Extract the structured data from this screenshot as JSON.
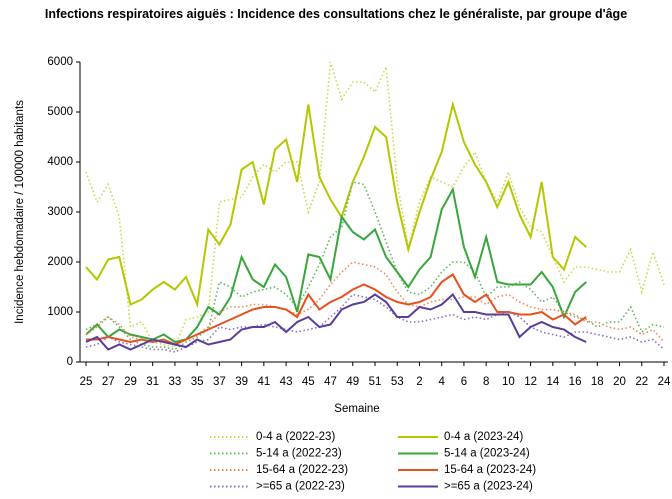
{
  "chart_data": {
    "type": "line",
    "title": "Infections respiratoires aiguës : Incidence des consultations chez le généraliste, par groupe d'âge",
    "x_label": "Semaine",
    "y_label": "Incidence hebdomadaire / 100000 habitants",
    "categories": [
      "25",
      null,
      "27",
      null,
      "29",
      null,
      "31",
      null,
      "33",
      null,
      "35",
      null,
      "37",
      null,
      "39",
      null,
      "41",
      null,
      "43",
      null,
      "45",
      null,
      "47",
      null,
      "49",
      null,
      "51",
      null,
      "53",
      null,
      "2",
      null,
      "4",
      null,
      "6",
      null,
      "8",
      null,
      "10",
      null,
      "12",
      null,
      "14",
      null,
      "16",
      null,
      "18",
      null,
      "20",
      null,
      "22",
      null,
      "24"
    ],
    "ylim": [
      0,
      6000
    ],
    "yticks": [
      0,
      1000,
      2000,
      3000,
      4000,
      5000,
      6000
    ],
    "series": [
      {
        "name": "0-4 a (2022-23)",
        "color": "#c9d84c",
        "style": "dotted",
        "values": [
          3800,
          3200,
          3550,
          2900,
          700,
          800,
          400,
          350,
          300,
          850,
          900,
          1000,
          3200,
          3250,
          3300,
          3700,
          3950,
          3800,
          4000,
          4000,
          3000,
          3600,
          6000,
          5250,
          5600,
          5600,
          5400,
          5900,
          3600,
          2300,
          3200,
          3700,
          3600,
          3500,
          3900,
          4200,
          3600,
          3200,
          3800,
          3100,
          2700,
          2600,
          2100,
          1600,
          1900,
          1900,
          1850,
          1800,
          1800,
          2250,
          1400,
          2200,
          1550
        ]
      },
      {
        "name": "0-4 a (2023-24)",
        "color": "#b4c700",
        "style": "solid",
        "values": [
          1900,
          1650,
          2050,
          2100,
          1150,
          1250,
          1450,
          1600,
          1450,
          1700,
          1150,
          2650,
          2350,
          2750,
          3850,
          4000,
          3150,
          4250,
          4450,
          3600,
          5150,
          3700,
          3250,
          2900,
          3600,
          4100,
          4700,
          4500,
          3200,
          2250,
          3000,
          3650,
          4200,
          5150,
          4400,
          3950,
          3600,
          3100,
          3600,
          2950,
          2500,
          3600,
          2100,
          1850,
          2500,
          2300,
          null,
          null,
          null,
          null,
          null,
          null,
          null
        ]
      },
      {
        "name": "5-14 a (2022-23)",
        "color": "#5cb85c",
        "style": "dotted",
        "values": [
          650,
          750,
          900,
          700,
          450,
          350,
          300,
          300,
          250,
          400,
          500,
          650,
          1600,
          1500,
          1300,
          1400,
          1450,
          1500,
          1350,
          1100,
          1500,
          1950,
          2500,
          2700,
          3600,
          3550,
          3000,
          2400,
          1800,
          1400,
          1350,
          1500,
          1800,
          2000,
          2000,
          1800,
          1300,
          1500,
          1500,
          1600,
          1450,
          1200,
          1300,
          1000,
          900,
          850,
          700,
          800,
          800,
          1100,
          600,
          750,
          700
        ]
      },
      {
        "name": "5-14 a (2023-24)",
        "color": "#3aa53a",
        "style": "solid",
        "values": [
          550,
          750,
          500,
          650,
          550,
          500,
          450,
          550,
          400,
          450,
          700,
          1100,
          950,
          1300,
          2100,
          1650,
          1500,
          1950,
          1700,
          1000,
          2150,
          2100,
          1650,
          2900,
          2600,
          2450,
          2650,
          2100,
          1800,
          1500,
          1850,
          2100,
          3050,
          3450,
          2300,
          1700,
          2500,
          1600,
          1550,
          1550,
          1550,
          1800,
          1500,
          900,
          1400,
          1600,
          null,
          null,
          null,
          null,
          null,
          null,
          null
        ]
      },
      {
        "name": "15-64 a (2022-23)",
        "color": "#f08a5d",
        "style": "dotted",
        "values": [
          550,
          700,
          900,
          750,
          500,
          450,
          400,
          400,
          350,
          450,
          550,
          700,
          1000,
          1100,
          1100,
          1150,
          1150,
          1100,
          1050,
          950,
          1050,
          1250,
          1550,
          1800,
          2000,
          1950,
          1900,
          1750,
          1400,
          1150,
          1100,
          1200,
          1250,
          1250,
          1300,
          1300,
          1150,
          1300,
          1350,
          1200,
          1100,
          1050,
          1050,
          1000,
          950,
          800,
          800,
          700,
          650,
          700,
          550,
          650,
          400
        ]
      },
      {
        "name": "15-64 a (2023-24)",
        "color": "#e8501e",
        "style": "solid",
        "values": [
          450,
          450,
          500,
          450,
          400,
          450,
          400,
          450,
          350,
          450,
          550,
          650,
          750,
          850,
          950,
          1050,
          1100,
          1100,
          1050,
          900,
          1350,
          1050,
          1200,
          1300,
          1450,
          1550,
          1450,
          1300,
          1200,
          1150,
          1200,
          1300,
          1600,
          1750,
          1350,
          1200,
          1350,
          1000,
          1000,
          950,
          950,
          1000,
          850,
          950,
          750,
          900,
          null,
          null,
          null,
          null,
          null,
          null,
          null
        ]
      },
      {
        "name": ">=65 a (2022-23)",
        "color": "#8a70c0",
        "style": "dotted",
        "values": [
          300,
          350,
          500,
          400,
          350,
          300,
          250,
          250,
          200,
          300,
          400,
          450,
          700,
          650,
          700,
          700,
          750,
          700,
          650,
          600,
          650,
          700,
          900,
          1100,
          1350,
          1300,
          1250,
          1100,
          900,
          800,
          800,
          850,
          900,
          950,
          850,
          900,
          850,
          950,
          1000,
          900,
          700,
          600,
          550,
          500,
          600,
          600,
          550,
          500,
          450,
          500,
          400,
          450,
          250
        ]
      },
      {
        "name": ">=65 a (2023-24)",
        "color": "#5a3d99",
        "style": "solid",
        "values": [
          400,
          500,
          250,
          350,
          250,
          350,
          450,
          400,
          350,
          300,
          450,
          350,
          400,
          450,
          650,
          700,
          700,
          800,
          600,
          800,
          900,
          700,
          750,
          1050,
          1150,
          1200,
          1350,
          1200,
          900,
          900,
          1100,
          1050,
          1150,
          1350,
          1000,
          1000,
          950,
          950,
          950,
          500,
          700,
          800,
          700,
          650,
          500,
          400,
          null,
          null,
          null,
          null,
          null,
          null,
          null
        ]
      }
    ]
  }
}
